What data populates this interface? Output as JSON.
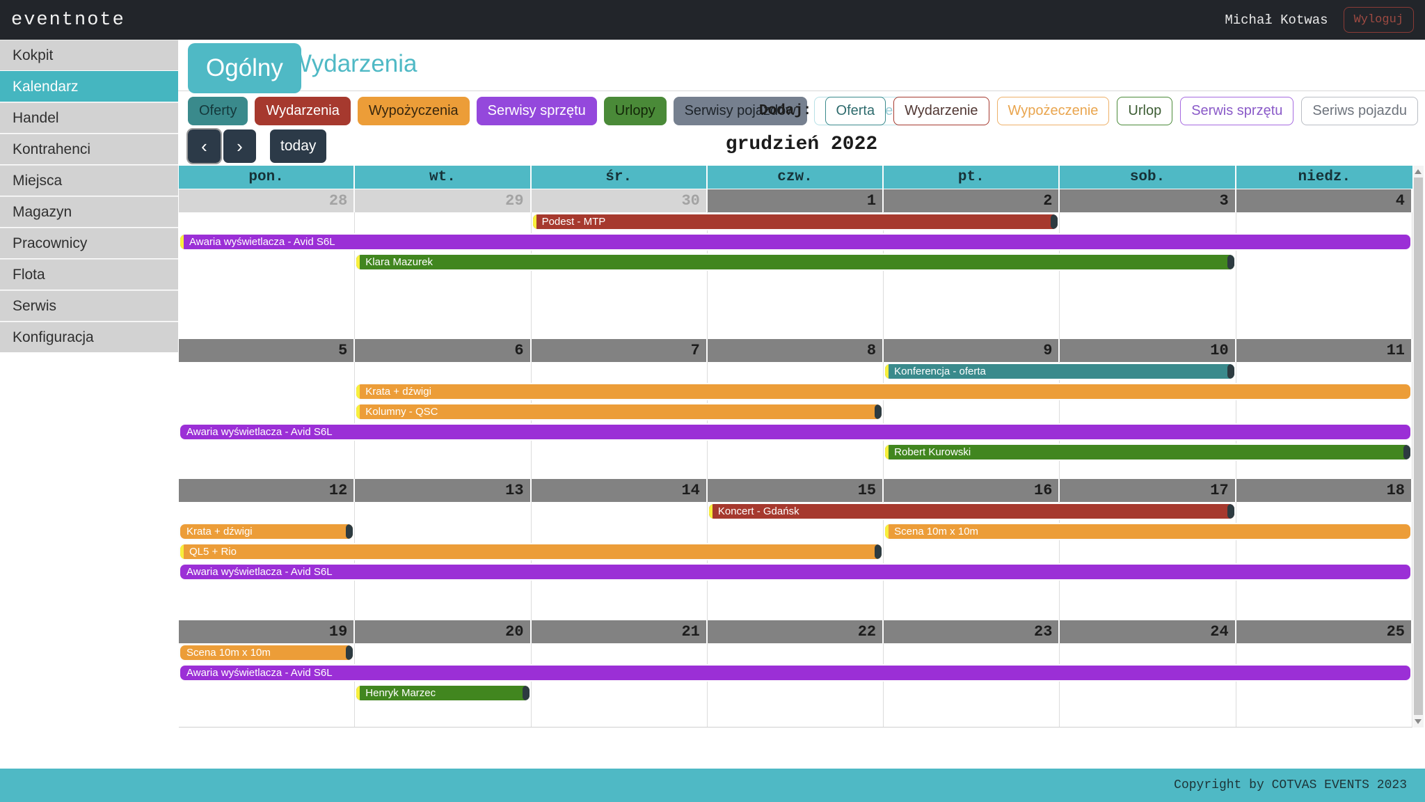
{
  "topbar": {
    "logo": "eventnote",
    "user": "Michał Kotwas",
    "logout_label": "Wyloguj"
  },
  "sidebar": {
    "items": [
      {
        "label": "Kokpit"
      },
      {
        "label": "Kalendarz",
        "active": true
      },
      {
        "label": "Handel"
      },
      {
        "label": "Kontrahenci"
      },
      {
        "label": "Miejsca"
      },
      {
        "label": "Magazyn"
      },
      {
        "label": "Pracownicy"
      },
      {
        "label": "Flota"
      },
      {
        "label": "Serwis"
      },
      {
        "label": "Konfiguracja"
      }
    ]
  },
  "tabs": [
    {
      "label": "Ogólny",
      "active": true
    },
    {
      "label": "Wydarzenia",
      "active": false
    }
  ],
  "filters": [
    {
      "label": "Oferty",
      "bg": "#3a8a8c",
      "fg": "#14383b"
    },
    {
      "label": "Wydarzenia",
      "bg": "#a6392e",
      "fg": "#ffffff"
    },
    {
      "label": "Wypożyczenia",
      "bg": "#ec9d38",
      "fg": "#38270e"
    },
    {
      "label": "Serwisy sprzętu",
      "bg": "#9448dc",
      "fg": "#ffffff"
    },
    {
      "label": "Urlopy",
      "bg": "#4a8a38",
      "fg": "#122608"
    },
    {
      "label": "Serwisy pojazdów",
      "bg": "#76808f",
      "fg": "#1d2329"
    },
    {
      "label": "Filtrowanie",
      "bg": "#ffffff",
      "fg": "#9ccfd8",
      "border": "#b7e0e6"
    }
  ],
  "add": {
    "label": "Dodaj:",
    "buttons": [
      {
        "label": "Oferta",
        "border": "#3a8a8c",
        "fg": "#2e6b6d"
      },
      {
        "label": "Wydarzenie",
        "border": "#a6392e",
        "fg": "#513733"
      },
      {
        "label": "Wypożeczenie",
        "border": "#eeb068",
        "fg": "#e9a54e"
      },
      {
        "label": "Urlop",
        "border": "#4a8a38",
        "fg": "#3c5c33"
      },
      {
        "label": "Serwis sprzętu",
        "border": "#a66ae0",
        "fg": "#8a5ac8"
      },
      {
        "label": "Seriws pojazdu",
        "border": "#b9bdc4",
        "fg": "#6d737c"
      }
    ]
  },
  "toolbar": {
    "prev": "‹",
    "next": "›",
    "today_label": "today",
    "title": "grudzień 2022"
  },
  "calendar": {
    "weekday_headers": [
      "pon.",
      "wt.",
      "śr.",
      "czw.",
      "pt.",
      "sob.",
      "niedz."
    ],
    "weeks": [
      {
        "days": [
          {
            "n": "28",
            "out": true
          },
          {
            "n": "29",
            "out": true
          },
          {
            "n": "30",
            "out": true
          },
          {
            "n": "1"
          },
          {
            "n": "2"
          },
          {
            "n": "3"
          },
          {
            "n": "4"
          }
        ],
        "events": [
          {
            "label": "Podest - MTP",
            "color": "#a6392e",
            "start": 2,
            "end": 5,
            "lane": 0,
            "starts": true,
            "ends": true
          },
          {
            "label": "Awaria wyświetlacza - Avid S6L",
            "color": "#9b2fd6",
            "start": 0,
            "end": 7,
            "lane": 1,
            "starts": true,
            "ends": false
          },
          {
            "label": "Klara Mazurek",
            "color": "#41861f",
            "start": 1,
            "end": 6,
            "lane": 2,
            "starts": true,
            "ends": true
          }
        ]
      },
      {
        "days": [
          {
            "n": "5"
          },
          {
            "n": "6"
          },
          {
            "n": "7"
          },
          {
            "n": "8"
          },
          {
            "n": "9"
          },
          {
            "n": "10"
          },
          {
            "n": "11"
          }
        ],
        "events": [
          {
            "label": "Konferencja - oferta",
            "color": "#3a8a8c",
            "start": 4,
            "end": 6,
            "lane": 0,
            "starts": true,
            "ends": true
          },
          {
            "label": "Krata + dźwigi",
            "color": "#ec9d38",
            "start": 1,
            "end": 7,
            "lane": 1,
            "starts": true,
            "ends": false
          },
          {
            "label": "Kolumny - QSC",
            "color": "#ec9d38",
            "start": 1,
            "end": 4,
            "lane": 2,
            "starts": true,
            "ends": true
          },
          {
            "label": "Awaria wyświetlacza - Avid S6L",
            "color": "#9b2fd6",
            "start": 0,
            "end": 7,
            "lane": 3,
            "starts": false,
            "ends": false
          },
          {
            "label": "Robert Kurowski",
            "color": "#41861f",
            "start": 4,
            "end": 7,
            "lane": 4,
            "starts": true,
            "ends": true
          }
        ]
      },
      {
        "days": [
          {
            "n": "12"
          },
          {
            "n": "13"
          },
          {
            "n": "14"
          },
          {
            "n": "15"
          },
          {
            "n": "16"
          },
          {
            "n": "17"
          },
          {
            "n": "18"
          }
        ],
        "events": [
          {
            "label": "Koncert - Gdańsk",
            "color": "#a6392e",
            "start": 3,
            "end": 6,
            "lane": 0,
            "starts": true,
            "ends": true
          },
          {
            "label": "Krata + dźwigi",
            "color": "#ec9d38",
            "start": 0,
            "end": 1,
            "lane": 1,
            "starts": false,
            "ends": true
          },
          {
            "label": "Scena 10m x 10m",
            "color": "#ec9d38",
            "start": 4,
            "end": 7,
            "lane": 1,
            "starts": true,
            "ends": false
          },
          {
            "label": "QL5 + Rio",
            "color": "#ec9d38",
            "start": 0,
            "end": 4,
            "lane": 2,
            "starts": true,
            "ends": true
          },
          {
            "label": "Awaria wyświetlacza - Avid S6L",
            "color": "#9b2fd6",
            "start": 0,
            "end": 7,
            "lane": 3,
            "starts": false,
            "ends": false
          }
        ]
      },
      {
        "days": [
          {
            "n": "19"
          },
          {
            "n": "20"
          },
          {
            "n": "21"
          },
          {
            "n": "22"
          },
          {
            "n": "23"
          },
          {
            "n": "24"
          },
          {
            "n": "25"
          }
        ],
        "events": [
          {
            "label": "Scena 10m x 10m",
            "color": "#ec9d38",
            "start": 0,
            "end": 1,
            "lane": 0,
            "starts": false,
            "ends": true
          },
          {
            "label": "Awaria wyświetlacza - Avid S6L",
            "color": "#9b2fd6",
            "start": 0,
            "end": 7,
            "lane": 1,
            "starts": false,
            "ends": false
          },
          {
            "label": "Henryk Marzec",
            "color": "#41861f",
            "start": 1,
            "end": 2,
            "lane": 2,
            "starts": true,
            "ends": true
          }
        ]
      }
    ]
  },
  "footer": {
    "copyright": "Copyright by COTVAS EVENTS 2023"
  },
  "colors": {
    "accent_teal": "#4fb9c5",
    "topbar_bg": "#22252a",
    "event_start_marker": "#f8ef3c",
    "event_end_cap": "#2d3b41",
    "day_strip": "#828282",
    "day_strip_out": "#d6d6d6"
  }
}
